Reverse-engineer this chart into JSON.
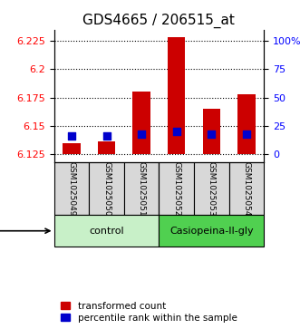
{
  "title": "GDS4665 / 206515_at",
  "samples": [
    "GSM1025049",
    "GSM1025050",
    "GSM1025051",
    "GSM1025052",
    "GSM1025053",
    "GSM1025054"
  ],
  "red_values": [
    6.135,
    6.136,
    6.18,
    6.228,
    6.165,
    6.178
  ],
  "blue_values": [
    6.141,
    6.141,
    6.143,
    6.145,
    6.143,
    6.143
  ],
  "baseline": 6.125,
  "ylim_min": 6.118,
  "ylim_max": 6.235,
  "yticks_left": [
    6.125,
    6.15,
    6.175,
    6.2,
    6.225
  ],
  "yticks_right_vals": [
    6.125,
    6.15,
    6.175,
    6.2,
    6.225
  ],
  "yticks_right_labels": [
    "0",
    "25",
    "50",
    "75",
    "100%"
  ],
  "groups": [
    {
      "label": "control",
      "indices": [
        0,
        1,
        2
      ],
      "color": "#c8f0c8"
    },
    {
      "label": "Casiopeina-II-gly",
      "indices": [
        3,
        4,
        5
      ],
      "color": "#50d050"
    }
  ],
  "bar_color": "#cc0000",
  "dot_color": "#0000cc",
  "bar_width": 0.5,
  "dot_size": 30,
  "title_fontsize": 11,
  "tick_fontsize": 8,
  "label_fontsize": 8,
  "legend_fontsize": 7.5,
  "group_label_fontsize": 8,
  "agent_label_fontsize": 9,
  "background_color": "#ffffff",
  "plot_bg_color": "#ffffff",
  "grid_color": "#000000",
  "sample_bg_color": "#d8d8d8"
}
